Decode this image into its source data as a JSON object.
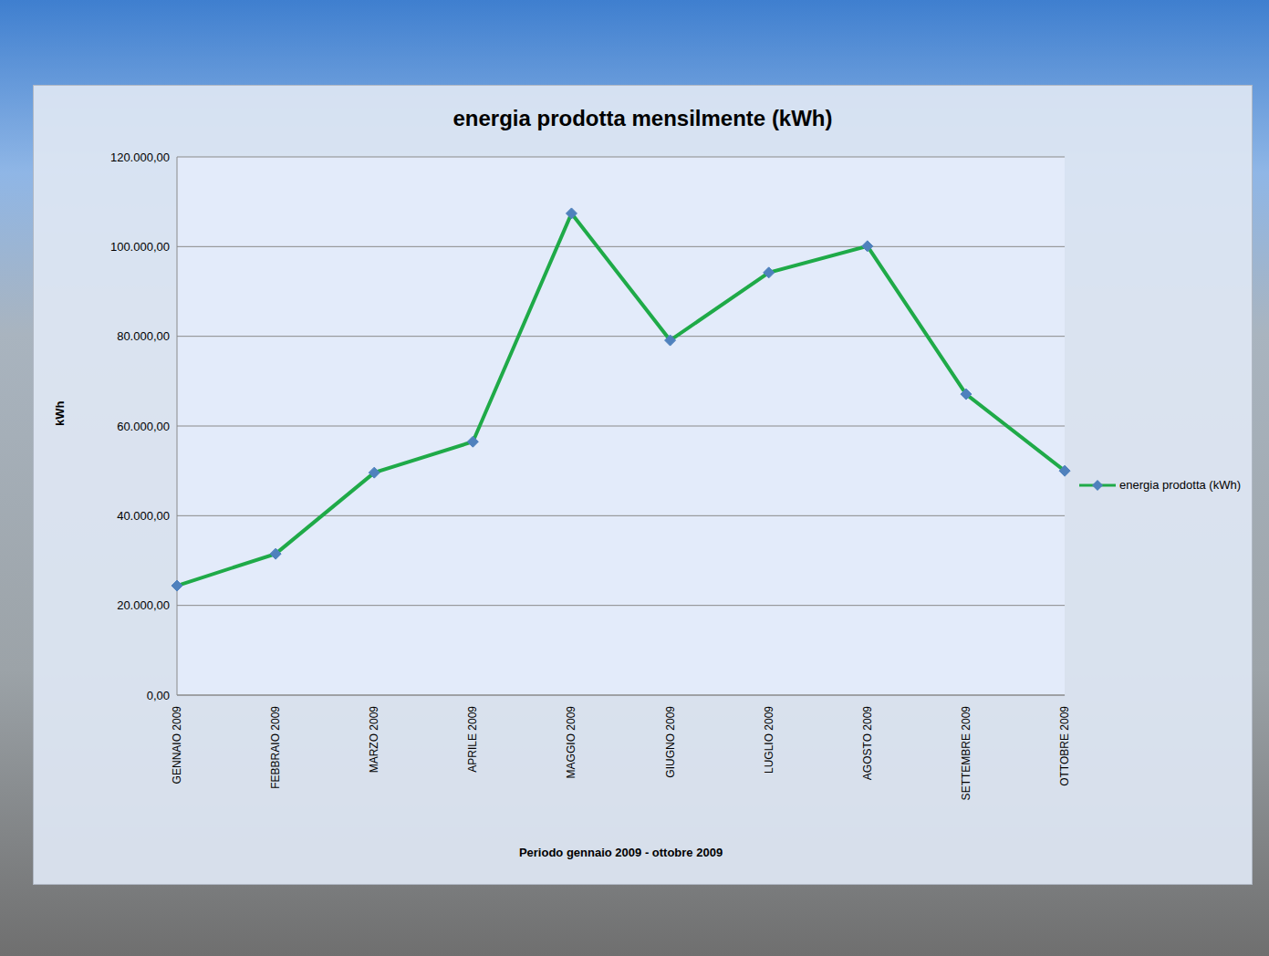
{
  "chart_data": {
    "type": "line",
    "title": "energia prodotta mensilmente (kWh)",
    "x_label": "Periodo gennaio  2009 - ottobre 2009",
    "y_label": "kWh",
    "categories": [
      "GENNAIO 2009",
      "FEBBRAIO 2009",
      "MARZO 2009",
      "APRILE 2009",
      "MAGGIO 2009",
      "GIUGNO 2009",
      "LUGLIO 2009",
      "AGOSTO 2009",
      "SETTEMBRE  2009",
      "OTTOBRE 2009"
    ],
    "series": [
      {
        "name": "energia prodotta (kWh)",
        "color": "#1faa48",
        "marker": "diamond",
        "values": [
          24400,
          31500,
          49600,
          56500,
          107400,
          79100,
          94200,
          100100,
          67100,
          50000
        ]
      }
    ],
    "ylim": [
      0,
      120000
    ],
    "yticks": [
      {
        "value": 0,
        "label": "0,00"
      },
      {
        "value": 20000,
        "label": "20.000,00"
      },
      {
        "value": 40000,
        "label": "40.000,00"
      },
      {
        "value": 60000,
        "label": "60.000,00"
      },
      {
        "value": 80000,
        "label": "80.000,00"
      },
      {
        "value": 100000,
        "label": "100.000,00"
      },
      {
        "value": 120000,
        "label": "120.000,00"
      }
    ],
    "grid": true,
    "legend": "right"
  }
}
